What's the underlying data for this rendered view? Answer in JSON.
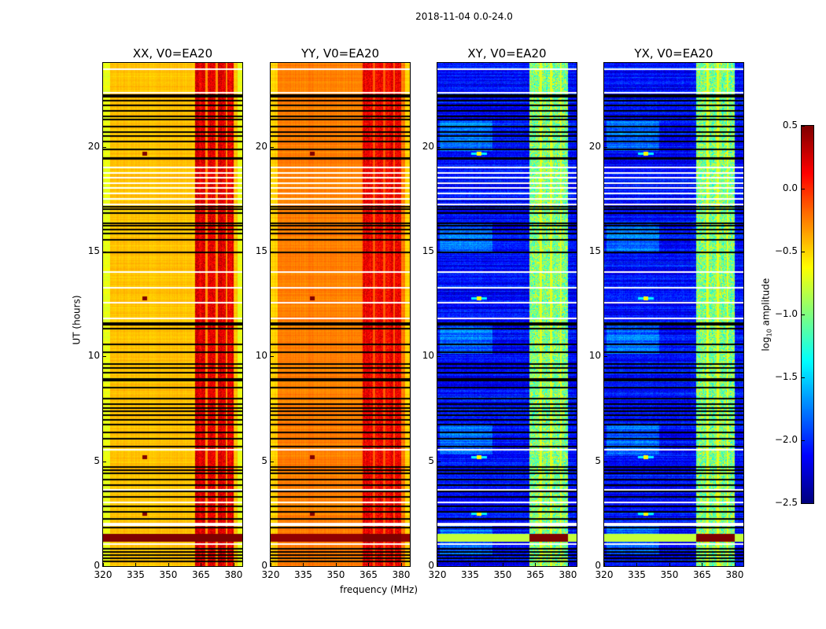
{
  "chart_data": {
    "type": "heatmap",
    "title": "2018-11-04 0.0-24.0",
    "xlabel": "frequency (MHz)",
    "ylabel": "UT (hours)",
    "xlim": [
      320,
      384
    ],
    "ylim": [
      0,
      24
    ],
    "xticks": [
      320,
      335,
      350,
      365,
      380
    ],
    "yticks": [
      0,
      5,
      10,
      15,
      20
    ],
    "colormap": "jet",
    "colorbar": {
      "label_main": "log",
      "label_sub": "10",
      "label_rest": " amplitude",
      "range": [
        -2.5,
        0.5
      ],
      "ticks": [
        0.5,
        0.0,
        -0.5,
        -1.0,
        -1.5,
        -2.0,
        -2.5
      ],
      "tick_labels": [
        "0.5",
        "0.0",
        "−0.5",
        "−1.0",
        "−1.5",
        "−2.0",
        "−2.5"
      ]
    },
    "panels": [
      {
        "title": "XX, V0=EA20",
        "base": -0.45,
        "band": 0.2,
        "gap": -0.3,
        "source": 0.5,
        "saturated_off_band": 0.5
      },
      {
        "title": "YY, V0=EA20",
        "base": -0.25,
        "band": 0.15,
        "gap": -0.15,
        "source": 0.5,
        "saturated_off_band": 0.45
      },
      {
        "title": "XY, V0=EA20",
        "base": -2.1,
        "band": -1.0,
        "gap": -0.7,
        "source": -0.6,
        "saturated_off_band": -0.8
      },
      {
        "title": "YX, V0=EA20",
        "base": -2.1,
        "band": -1.0,
        "gap": -0.7,
        "source": -0.6,
        "saturated_off_band": -0.8
      }
    ],
    "band_mhz": [
      362,
      380
    ],
    "band_gaps_mhz": [
      367.3,
      372.2,
      376.6
    ],
    "source_mhz": 339,
    "source_hours": [
      2.5,
      5.2,
      12.8,
      19.7
    ],
    "saturated_hours": [
      1.2,
      1.55
    ],
    "flagged_hours": [
      22.5,
      22.42,
      22.23,
      22.0,
      21.75,
      21.5,
      21.33,
      21.0,
      20.73,
      20.55,
      20.3,
      19.9,
      19.5,
      19.46,
      17.17,
      17.06,
      16.87,
      16.39,
      16.27,
      16.09,
      15.9,
      15.6,
      15.0,
      11.62,
      11.55,
      11.36,
      10.6,
      10.24,
      9.67,
      9.49,
      9.26,
      8.96,
      8.89,
      8.55,
      8.02,
      7.76,
      7.57,
      7.42,
      7.24,
      7.01,
      6.79,
      6.41,
      6.11,
      5.74,
      4.76,
      4.61,
      4.46,
      4.16,
      3.9,
      3.6,
      3.34,
      2.89,
      2.62,
      2.29,
      1.87,
      0.86,
      0.71,
      0.56,
      0.41,
      0.26
    ],
    "blank_hours": [
      23.74,
      22.6,
      19.05,
      18.8,
      18.56,
      18.3,
      18.07,
      17.8,
      17.55,
      17.3,
      14.05,
      13.3,
      12.6,
      11.85,
      5.6,
      3.68,
      3.07,
      2.05,
      2.0,
      1.1
    ]
  }
}
